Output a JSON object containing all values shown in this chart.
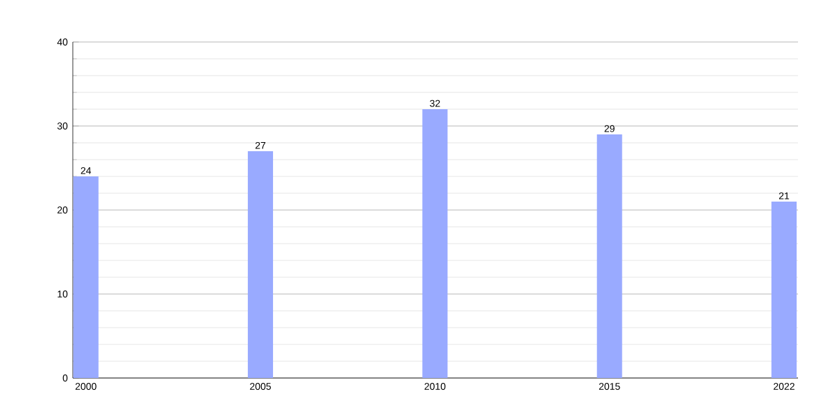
{
  "chart_data": {
    "type": "bar",
    "categories": [
      "2000",
      "2005",
      "2010",
      "2015",
      "2022"
    ],
    "values": [
      24,
      27,
      32,
      29,
      21
    ],
    "color": "#99aaff",
    "ylim": [
      0,
      40
    ],
    "yticks": [
      0,
      10,
      20,
      30,
      40
    ],
    "grid": true,
    "data_labels": true
  }
}
